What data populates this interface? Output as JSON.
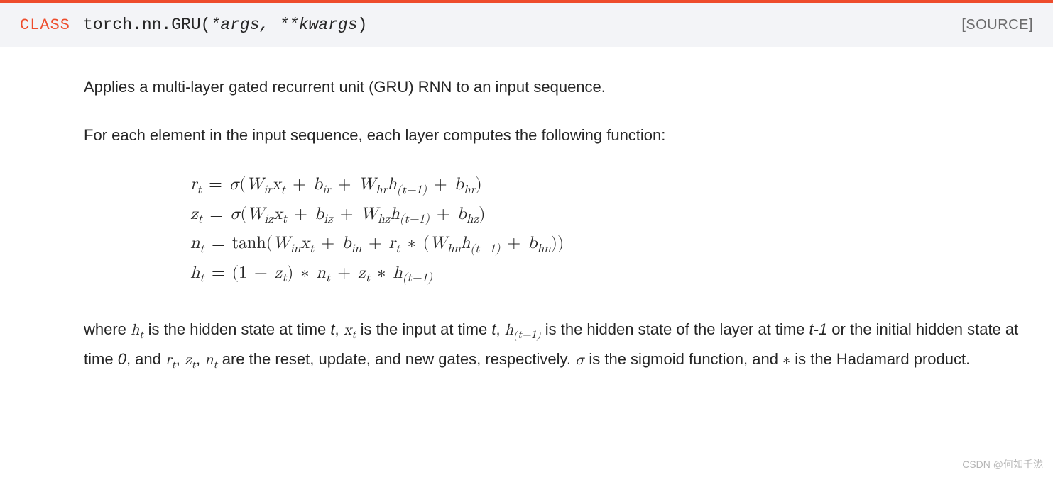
{
  "header": {
    "class_label": "CLASS",
    "module_path": "torch.nn.",
    "class_name": "GRU",
    "args_open": "(",
    "args_text": "*args, **kwargs",
    "args_close": ")",
    "source_label": "[SOURCE]"
  },
  "body": {
    "intro": "Applies a multi-layer gated recurrent unit (GRU) RNN to an input sequence.",
    "lead": "For each element in the input sequence, each layer computes the following function:"
  },
  "equations": {
    "line1": {
      "lhs_var": "r",
      "lhs_sub": "t",
      "sigma": "σ",
      "W1": "W",
      "W1_sub": "ir",
      "x": "x",
      "x_sub": "t",
      "b1": "b",
      "b1_sub": "ir",
      "W2": "W",
      "W2_sub": "hr",
      "h": "h",
      "h_sub": "(t−1)",
      "b2": "b",
      "b2_sub": "hr"
    },
    "line2": {
      "lhs_var": "z",
      "lhs_sub": "t",
      "sigma": "σ",
      "W1": "W",
      "W1_sub": "iz",
      "x": "x",
      "x_sub": "t",
      "b1": "b",
      "b1_sub": "iz",
      "W2": "W",
      "W2_sub": "hz",
      "h": "h",
      "h_sub": "(t−1)",
      "b2": "b",
      "b2_sub": "hz"
    },
    "line3": {
      "lhs_var": "n",
      "lhs_sub": "t",
      "tanh": "tanh",
      "W1": "W",
      "W1_sub": "in",
      "x": "x",
      "x_sub": "t",
      "b1": "b",
      "b1_sub": "in",
      "r": "r",
      "r_sub": "t",
      "W2": "W",
      "W2_sub": "hn",
      "h": "h",
      "h_sub": "(t−1)",
      "b2": "b",
      "b2_sub": "hn"
    },
    "line4": {
      "lhs_var": "h",
      "lhs_sub": "t",
      "one": "1",
      "z": "z",
      "z_sub": "t",
      "n": "n",
      "n_sub": "t",
      "z2": "z",
      "z2_sub": "t",
      "h": "h",
      "h_sub": "(t−1)"
    }
  },
  "desc": {
    "t1": "where ",
    "ht_var": "h",
    "ht_sub": "t",
    "t2": " is the hidden state at time ",
    "time_t": "t",
    "t3": ", ",
    "xt_var": "x",
    "xt_sub": "t",
    "t4": " is the input at time ",
    "time_t2": "t",
    "t5": ", ",
    "htm1_var": "h",
    "htm1_sub": "(t−1)",
    "t6": " is the hidden state of the layer at time ",
    "tminus1": "t-1",
    "t7": " or the initial hidden state at time ",
    "zero": "0",
    "t8": ", and ",
    "rt_var": "r",
    "rt_sub": "t",
    "comma1": ", ",
    "zt_var": "z",
    "zt_sub": "t",
    "comma2": ", ",
    "nt_var": "n",
    "nt_sub": "t",
    "t9": " are the reset, update, and new gates, respectively. ",
    "sigma": "σ",
    "t10": " is the sigmoid function, and ",
    "star": "∗",
    "t11": " is the Hadamard product."
  },
  "watermark": "CSDN @何如千泷",
  "colors": {
    "accent": "#ee4c2c",
    "header_bg": "#f3f4f7",
    "text": "#262626",
    "muted": "#6c6c6d"
  }
}
